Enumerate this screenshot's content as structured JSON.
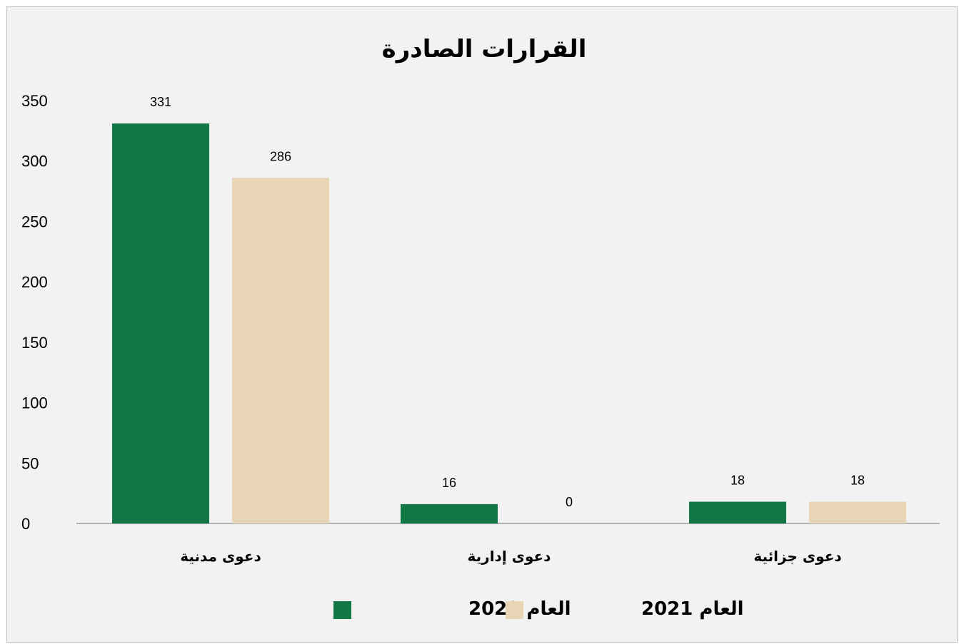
{
  "chart_data": {
    "type": "bar",
    "title": "القرارات الصادرة",
    "categories": [
      "دعوى مدنية",
      "دعوى إدارية",
      "دعوى جزائية"
    ],
    "series": [
      {
        "name": "العام 2022",
        "values": [
          331,
          16,
          18
        ],
        "color": "#107745"
      },
      {
        "name": "العام 2021",
        "values": [
          286,
          0,
          18
        ],
        "color": "#e8d5b5"
      }
    ],
    "ylim": [
      0,
      350
    ],
    "yticks": [
      0,
      50,
      100,
      150,
      200,
      250,
      300,
      350
    ],
    "grid": false,
    "legend": "bottom",
    "data_labels": true
  }
}
